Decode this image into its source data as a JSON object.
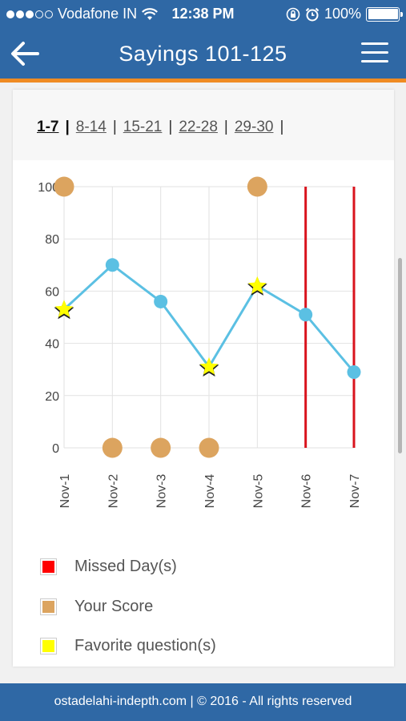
{
  "status": {
    "carrier": "Vodafone IN",
    "time": "12:38 PM",
    "battery": "100%",
    "signal_bars_filled": 3,
    "signal_bars_total": 5
  },
  "header": {
    "title": "Sayings 101-125",
    "back_icon": "arrow-left-icon",
    "menu_icon": "hamburger-menu-icon"
  },
  "tabs": [
    "1-7",
    "8-14",
    "15-21",
    "22-28",
    "29-30"
  ],
  "tabs_active": "1-7",
  "chart_data": {
    "type": "line",
    "categories": [
      "Nov-1",
      "Nov-2",
      "Nov-3",
      "Nov-4",
      "Nov-5",
      "Nov-6",
      "Nov-7"
    ],
    "ylim": [
      0,
      100
    ],
    "yticks": [
      0,
      20,
      40,
      60,
      80,
      100
    ],
    "grid": true,
    "series": [
      {
        "values": [
          53,
          70,
          56,
          31,
          62,
          51,
          29
        ],
        "color": "#5bc0e3"
      }
    ],
    "your_score": [
      {
        "x": "Nov-1",
        "y": 100
      },
      {
        "x": "Nov-2",
        "y": 0
      },
      {
        "x": "Nov-3",
        "y": 0
      },
      {
        "x": "Nov-4",
        "y": 0
      },
      {
        "x": "Nov-5",
        "y": 100
      }
    ],
    "favorite_days": [
      "Nov-1",
      "Nov-4",
      "Nov-5"
    ],
    "missed_days": [
      "Nov-6",
      "Nov-7"
    ]
  },
  "legend": [
    {
      "label": "Missed Day(s)",
      "color": "#ff0000"
    },
    {
      "label": "Your Score",
      "color": "#dca45f"
    },
    {
      "label": "Favorite question(s)",
      "color": "#ffff00"
    }
  ],
  "colors": {
    "header": "#2f68a5",
    "accent": "#ef8b23",
    "line": "#5bc0e3",
    "missed": "#d9131d",
    "score": "#dca45f",
    "favorite": "#ffff00"
  },
  "footer": {
    "text": "ostadelahi-indepth.com | © 2016 - All rights reserved"
  }
}
